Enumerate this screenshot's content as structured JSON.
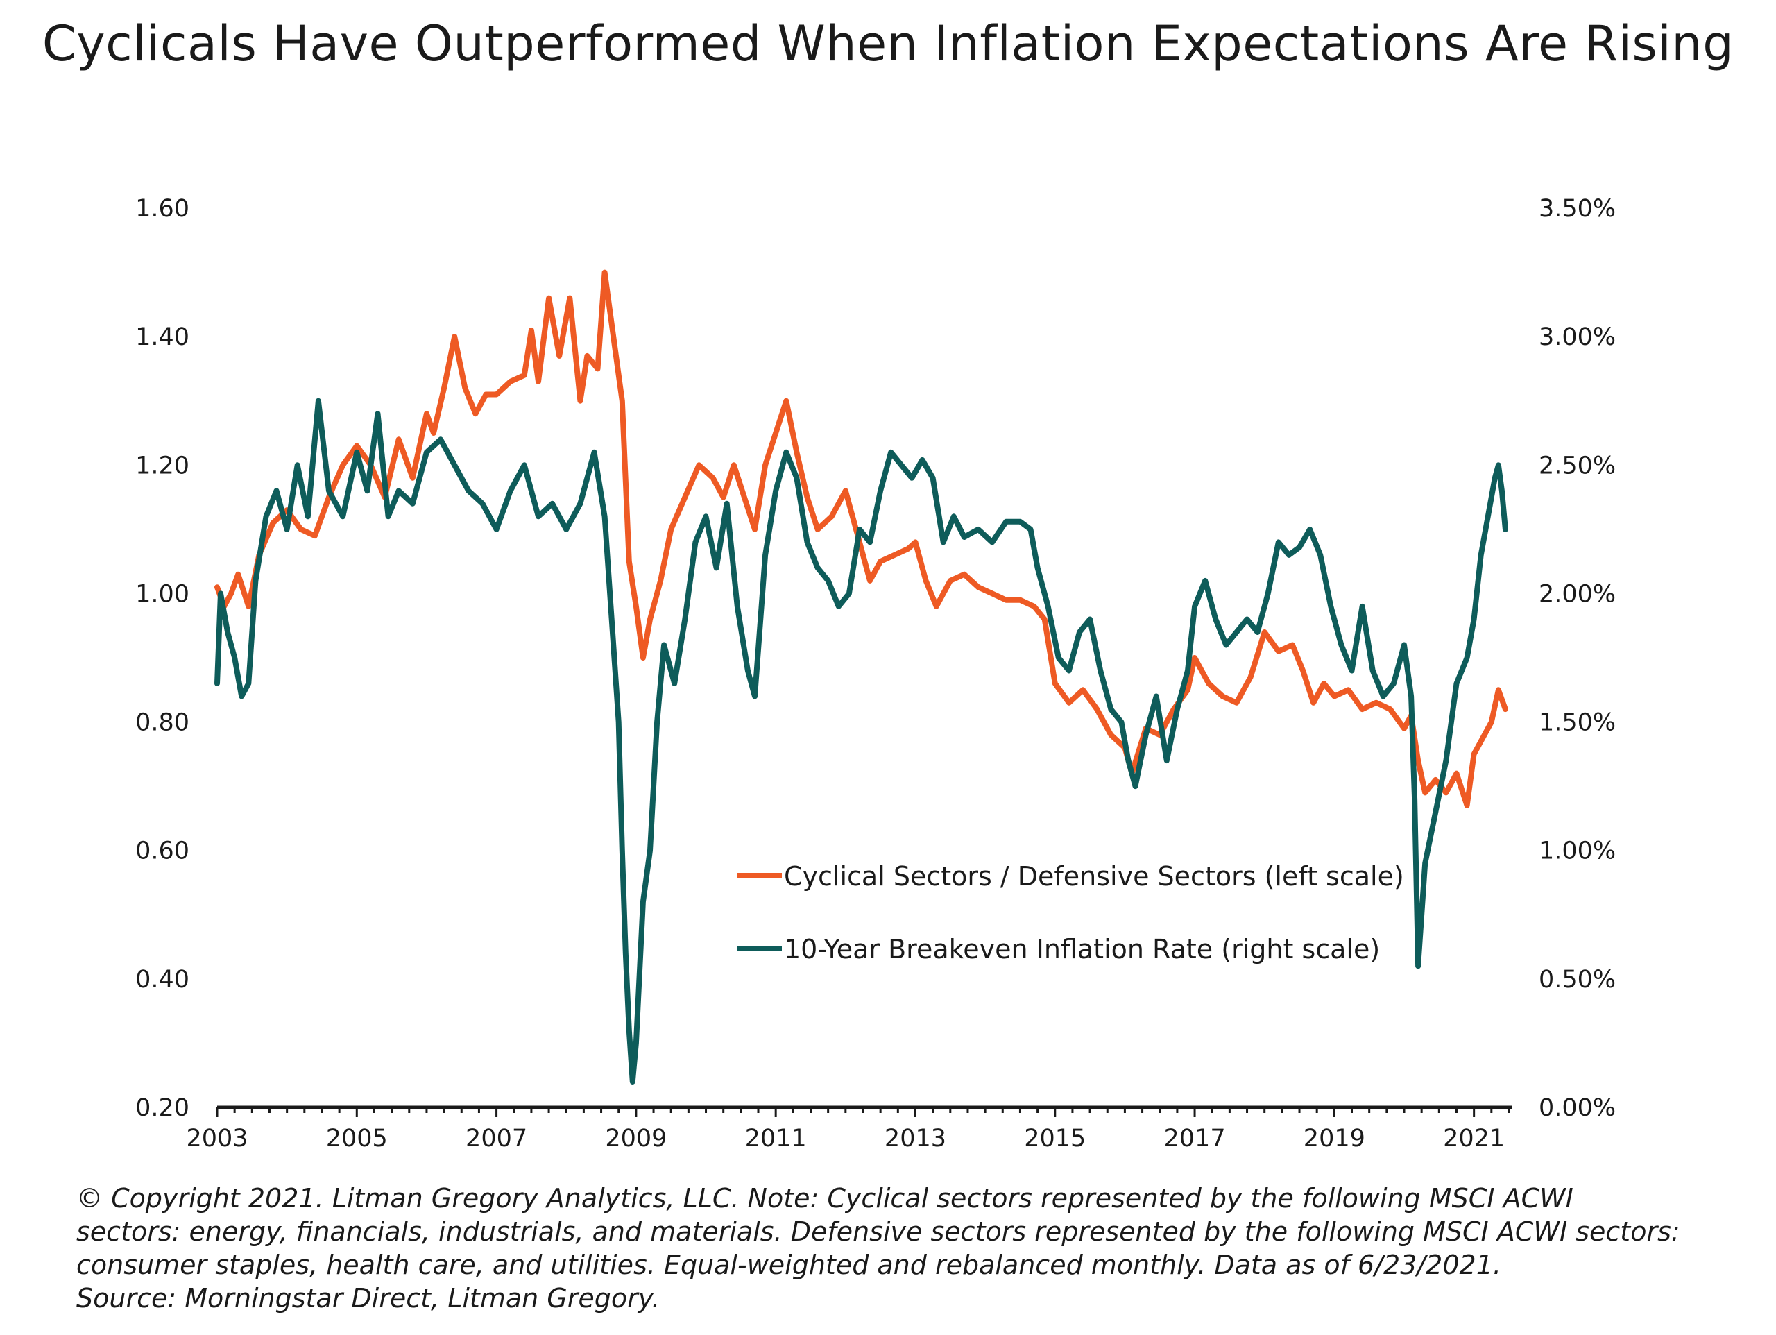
{
  "chart_data": {
    "type": "line",
    "title": "Cyclicals Have Outperformed When Inflation Expectations Are Rising",
    "x_ticks": [
      "2003",
      "2005",
      "2007",
      "2009",
      "2011",
      "2013",
      "2015",
      "2017",
      "2019",
      "2021"
    ],
    "xlim": [
      2003.0,
      2021.55
    ],
    "left_axis": {
      "ylim": [
        0.2,
        1.6
      ],
      "tick_values": [
        0.2,
        0.4,
        0.6,
        0.8,
        1.0,
        1.2,
        1.4,
        1.6
      ],
      "tick_labels": [
        "0.20",
        "0.40",
        "0.60",
        "0.80",
        "1.00",
        "1.20",
        "1.40",
        "1.60"
      ]
    },
    "right_axis": {
      "ylim": [
        0.0,
        3.5
      ],
      "tick_values": [
        0.0,
        0.5,
        1.0,
        1.5,
        2.0,
        2.5,
        3.0,
        3.5
      ],
      "tick_labels": [
        "0.00%",
        "0.50%",
        "1.00%",
        "1.50%",
        "2.00%",
        "2.50%",
        "3.00%",
        "3.50%"
      ]
    },
    "legend": {
      "placement": "center-right"
    },
    "grid": false,
    "series": [
      {
        "name": "Cyclical Sectors / Defensive Sectors (left scale)",
        "axis": "left",
        "color": "#ee5a24",
        "x": [
          2003.0,
          2003.1,
          2003.2,
          2003.3,
          2003.45,
          2003.6,
          2003.8,
          2004.0,
          2004.2,
          2004.4,
          2004.6,
          2004.8,
          2005.0,
          2005.2,
          2005.4,
          2005.6,
          2005.8,
          2006.0,
          2006.1,
          2006.25,
          2006.4,
          2006.55,
          2006.7,
          2006.85,
          2007.0,
          2007.2,
          2007.4,
          2007.5,
          2007.6,
          2007.75,
          2007.9,
          2008.05,
          2008.2,
          2008.3,
          2008.45,
          2008.55,
          2008.7,
          2008.8,
          2008.9,
          2009.0,
          2009.1,
          2009.2,
          2009.35,
          2009.5,
          2009.7,
          2009.9,
          2010.1,
          2010.25,
          2010.4,
          2010.55,
          2010.7,
          2010.85,
          2011.0,
          2011.15,
          2011.3,
          2011.45,
          2011.6,
          2011.8,
          2012.0,
          2012.2,
          2012.35,
          2012.5,
          2012.7,
          2012.9,
          2013.0,
          2013.15,
          2013.3,
          2013.5,
          2013.7,
          2013.9,
          2014.1,
          2014.3,
          2014.5,
          2014.7,
          2014.85,
          2015.0,
          2015.2,
          2015.4,
          2015.6,
          2015.8,
          2016.0,
          2016.1,
          2016.3,
          2016.5,
          2016.7,
          2016.9,
          2017.0,
          2017.2,
          2017.4,
          2017.6,
          2017.8,
          2018.0,
          2018.2,
          2018.4,
          2018.55,
          2018.7,
          2018.85,
          2019.0,
          2019.2,
          2019.4,
          2019.6,
          2019.8,
          2020.0,
          2020.1,
          2020.2,
          2020.3,
          2020.45,
          2020.6,
          2020.75,
          2020.9,
          2021.0,
          2021.15,
          2021.25,
          2021.35,
          2021.45
        ],
        "y": [
          1.01,
          0.98,
          1.0,
          1.03,
          0.98,
          1.06,
          1.11,
          1.13,
          1.1,
          1.09,
          1.15,
          1.2,
          1.23,
          1.2,
          1.15,
          1.24,
          1.18,
          1.28,
          1.25,
          1.32,
          1.4,
          1.32,
          1.28,
          1.31,
          1.31,
          1.33,
          1.34,
          1.41,
          1.33,
          1.46,
          1.37,
          1.46,
          1.3,
          1.37,
          1.35,
          1.5,
          1.38,
          1.3,
          1.05,
          0.98,
          0.9,
          0.96,
          1.02,
          1.1,
          1.15,
          1.2,
          1.18,
          1.15,
          1.2,
          1.15,
          1.1,
          1.2,
          1.25,
          1.3,
          1.22,
          1.15,
          1.1,
          1.12,
          1.16,
          1.08,
          1.02,
          1.05,
          1.06,
          1.07,
          1.08,
          1.02,
          0.98,
          1.02,
          1.03,
          1.01,
          1.0,
          0.99,
          0.99,
          0.98,
          0.96,
          0.86,
          0.83,
          0.85,
          0.82,
          0.78,
          0.76,
          0.72,
          0.79,
          0.78,
          0.82,
          0.85,
          0.9,
          0.86,
          0.84,
          0.83,
          0.87,
          0.94,
          0.91,
          0.92,
          0.88,
          0.83,
          0.86,
          0.84,
          0.85,
          0.82,
          0.83,
          0.82,
          0.79,
          0.81,
          0.74,
          0.69,
          0.71,
          0.69,
          0.72,
          0.67,
          0.75,
          0.78,
          0.8,
          0.85,
          0.82
        ]
      },
      {
        "name": "10-Year Breakeven Inflation Rate (right scale)",
        "axis": "right",
        "color": "#0e5c5a",
        "x": [
          2003.0,
          2003.05,
          2003.15,
          2003.25,
          2003.35,
          2003.45,
          2003.55,
          2003.7,
          2003.85,
          2004.0,
          2004.15,
          2004.3,
          2004.45,
          2004.6,
          2004.8,
          2005.0,
          2005.15,
          2005.3,
          2005.45,
          2005.6,
          2005.8,
          2006.0,
          2006.2,
          2006.4,
          2006.6,
          2006.8,
          2007.0,
          2007.2,
          2007.4,
          2007.6,
          2007.8,
          2008.0,
          2008.2,
          2008.4,
          2008.55,
          2008.65,
          2008.75,
          2008.8,
          2008.85,
          2008.9,
          2008.95,
          2009.0,
          2009.1,
          2009.2,
          2009.3,
          2009.4,
          2009.55,
          2009.7,
          2009.85,
          2010.0,
          2010.15,
          2010.3,
          2010.45,
          2010.6,
          2010.7,
          2010.85,
          2011.0,
          2011.15,
          2011.3,
          2011.45,
          2011.6,
          2011.75,
          2011.9,
          2012.05,
          2012.2,
          2012.35,
          2012.5,
          2012.65,
          2012.8,
          2012.95,
          2013.1,
          2013.25,
          2013.4,
          2013.55,
          2013.7,
          2013.9,
          2014.1,
          2014.3,
          2014.5,
          2014.65,
          2014.75,
          2014.9,
          2015.05,
          2015.2,
          2015.35,
          2015.5,
          2015.65,
          2015.8,
          2015.95,
          2016.05,
          2016.15,
          2016.3,
          2016.45,
          2016.6,
          2016.75,
          2016.9,
          2017.0,
          2017.15,
          2017.3,
          2017.45,
          2017.6,
          2017.75,
          2017.9,
          2018.05,
          2018.2,
          2018.35,
          2018.5,
          2018.65,
          2018.8,
          2018.95,
          2019.1,
          2019.25,
          2019.4,
          2019.55,
          2019.7,
          2019.85,
          2020.0,
          2020.1,
          2020.15,
          2020.2,
          2020.3,
          2020.45,
          2020.6,
          2020.75,
          2020.9,
          2021.0,
          2021.1,
          2021.2,
          2021.3,
          2021.35,
          2021.4,
          2021.45
        ],
        "y": [
          1.65,
          2.0,
          1.85,
          1.75,
          1.6,
          1.65,
          2.05,
          2.3,
          2.4,
          2.25,
          2.5,
          2.3,
          2.75,
          2.4,
          2.3,
          2.55,
          2.4,
          2.7,
          2.3,
          2.4,
          2.35,
          2.55,
          2.6,
          2.5,
          2.4,
          2.35,
          2.25,
          2.4,
          2.5,
          2.3,
          2.35,
          2.25,
          2.35,
          2.55,
          2.3,
          1.9,
          1.5,
          1.0,
          0.6,
          0.3,
          0.1,
          0.25,
          0.8,
          1.0,
          1.5,
          1.8,
          1.65,
          1.9,
          2.2,
          2.3,
          2.1,
          2.35,
          1.95,
          1.7,
          1.6,
          2.15,
          2.4,
          2.55,
          2.45,
          2.2,
          2.1,
          2.05,
          1.95,
          2.0,
          2.25,
          2.2,
          2.4,
          2.55,
          2.5,
          2.45,
          2.52,
          2.45,
          2.2,
          2.3,
          2.22,
          2.25,
          2.2,
          2.28,
          2.28,
          2.25,
          2.1,
          1.95,
          1.75,
          1.7,
          1.85,
          1.9,
          1.7,
          1.55,
          1.5,
          1.35,
          1.25,
          1.45,
          1.6,
          1.35,
          1.55,
          1.7,
          1.95,
          2.05,
          1.9,
          1.8,
          1.85,
          1.9,
          1.85,
          2.0,
          2.2,
          2.15,
          2.18,
          2.25,
          2.15,
          1.95,
          1.8,
          1.7,
          1.95,
          1.7,
          1.6,
          1.65,
          1.8,
          1.6,
          1.2,
          0.55,
          0.95,
          1.15,
          1.35,
          1.65,
          1.75,
          1.9,
          2.15,
          2.3,
          2.45,
          2.5,
          2.4,
          2.25
        ]
      }
    ]
  },
  "footnote": {
    "lines": [
      "© Copyright 2021. Litman Gregory Analytics, LLC. Note: Cyclical sectors represented by the following MSCI ACWI",
      "sectors: energy, financials, industrials, and materials. Defensive sectors represented by the following MSCI ACWI sectors:",
      "consumer staples, health care, and utilities. Equal-weighted and rebalanced monthly. Data as of 6/23/2021.",
      "Source: Morningstar Direct, Litman Gregory."
    ]
  }
}
